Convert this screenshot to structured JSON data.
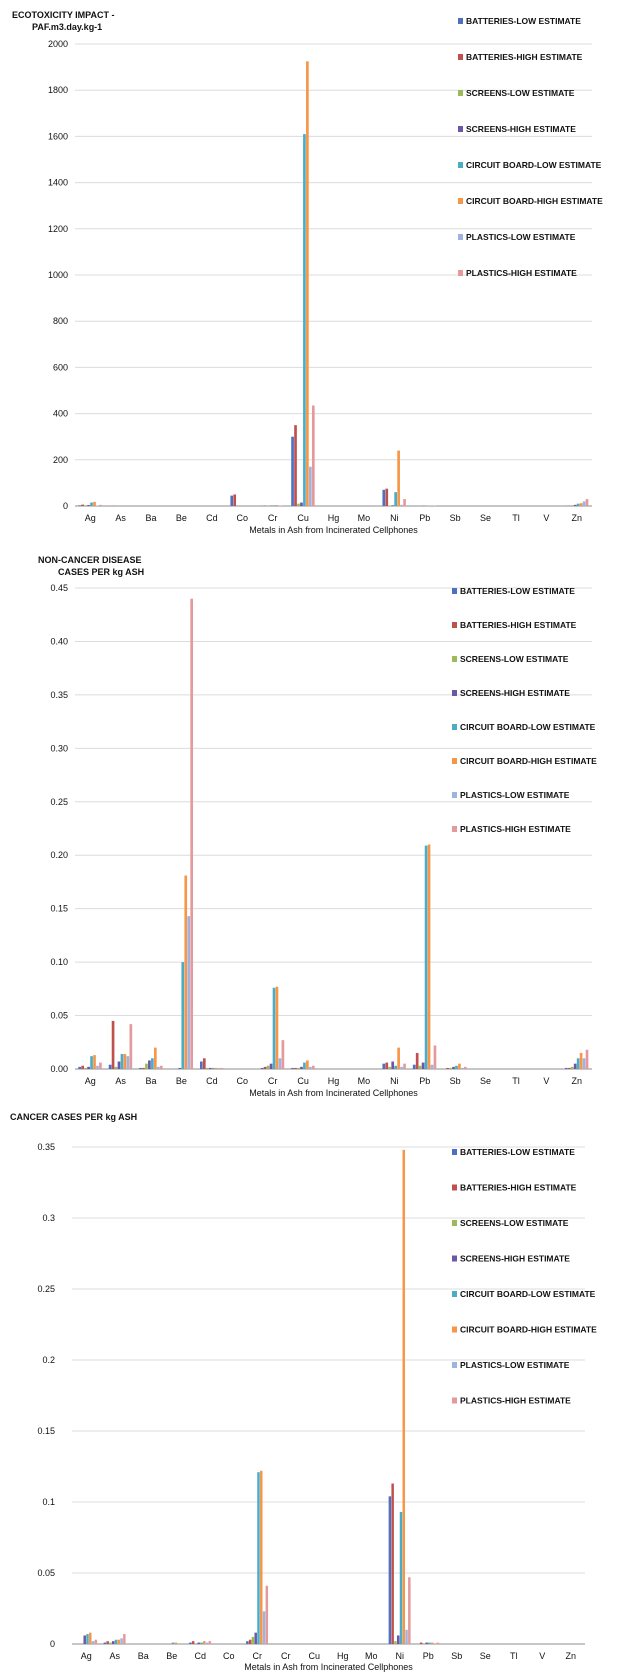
{
  "colors": [
    "#4f6fc1",
    "#c0504d",
    "#9bbb59",
    "#6b57a5",
    "#4bacc6",
    "#f79646",
    "#9fb3e0",
    "#e6999b"
  ],
  "chart_data": [
    {
      "type": "bar",
      "ylabel_lines": [
        "ECOTOXICITY IMPACT  -",
        "PAF.m3.day.kg-1"
      ],
      "xlabel": "Metals in Ash from Incinerated Cellphones",
      "ylim": [
        0,
        2000
      ],
      "ytick_labels": [
        "0",
        "200",
        "400",
        "600",
        "800",
        "1000",
        "1200",
        "1400",
        "1600",
        "1800",
        "2000"
      ],
      "grid": true,
      "legend_position": "top-right",
      "categories": [
        "Ag",
        "As",
        "Ba",
        "Be",
        "Cd",
        "Co",
        "Cr",
        "Cu",
        "Hg",
        "Mo",
        "Ni",
        "Pb",
        "Sb",
        "Se",
        "Tl",
        "V",
        "Zn"
      ],
      "series": [
        {
          "name": "BATTERIES-LOW ESTIMATE",
          "values": [
            3,
            0,
            0,
            0,
            0,
            45,
            1,
            300,
            0,
            0,
            70,
            0,
            0,
            0,
            0,
            0,
            1
          ]
        },
        {
          "name": "BATTERIES-HIGH ESTIMATE",
          "values": [
            6,
            1,
            0,
            0,
            0,
            50,
            2,
            350,
            0,
            0,
            75,
            0,
            0,
            0,
            0,
            0,
            2
          ]
        },
        {
          "name": "SCREENS-LOW ESTIMATE",
          "values": [
            3,
            0,
            0,
            0,
            0,
            0,
            1,
            10,
            0,
            0,
            2,
            1,
            0,
            0,
            0,
            0,
            3
          ]
        },
        {
          "name": "SCREENS-HIGH ESTIMATE",
          "values": [
            4,
            0,
            0,
            0,
            0,
            0,
            2,
            15,
            0,
            0,
            3,
            1,
            0,
            0,
            0,
            0,
            5
          ]
        },
        {
          "name": "CIRCUIT BOARD-LOW ESTIMATE",
          "values": [
            15,
            0,
            0,
            0,
            0,
            0,
            3,
            1610,
            0,
            0,
            60,
            1,
            0,
            0,
            0,
            0,
            10
          ]
        },
        {
          "name": "CIRCUIT BOARD-HIGH ESTIMATE",
          "values": [
            18,
            0,
            0,
            0,
            0,
            0,
            4,
            1925,
            0,
            0,
            240,
            2,
            0,
            0,
            0,
            0,
            12
          ]
        },
        {
          "name": "PLASTICS-LOW ESTIMATE",
          "values": [
            2,
            0,
            0,
            0,
            0,
            0,
            2,
            170,
            0,
            0,
            5,
            1,
            0,
            0,
            0,
            0,
            20
          ]
        },
        {
          "name": "PLASTICS-HIGH ESTIMATE",
          "values": [
            5,
            0,
            0,
            0,
            0,
            0,
            3,
            435,
            0,
            0,
            30,
            2,
            0,
            0,
            0,
            0,
            30
          ]
        }
      ]
    },
    {
      "type": "bar",
      "ylabel_lines": [
        "NON-CANCER DISEASE",
        "CASES PER kg ASH"
      ],
      "xlabel": "Metals in Ash from Incinerated Cellphones",
      "ylim": [
        0,
        0.45
      ],
      "ytick_labels": [
        "0.00",
        "0.05",
        "0.10",
        "0.15",
        "0.20",
        "0.25",
        "0.30",
        "0.35",
        "0.40",
        "0.45"
      ],
      "grid": true,
      "legend_position": "top-right",
      "categories": [
        "Ag",
        "As",
        "Ba",
        "Be",
        "Cd",
        "Co",
        "Cr",
        "Cu",
        "Hg",
        "Mo",
        "Ni",
        "Pb",
        "Sb",
        "Se",
        "Tl",
        "V",
        "Zn"
      ],
      "series": [
        {
          "name": "BATTERIES-LOW ESTIMATE",
          "values": [
            0.002,
            0.004,
            0.001,
            0,
            0.007,
            0,
            0.001,
            0.001,
            0,
            0,
            0.005,
            0.004,
            0,
            0,
            0,
            0,
            0.001
          ]
        },
        {
          "name": "BATTERIES-HIGH ESTIMATE",
          "values": [
            0.003,
            0.045,
            0.001,
            0,
            0.01,
            0,
            0.002,
            0.001,
            0,
            0,
            0.006,
            0.015,
            0.001,
            0,
            0,
            0,
            0.001
          ]
        },
        {
          "name": "SCREENS-LOW ESTIMATE",
          "values": [
            0.001,
            0.002,
            0.005,
            0,
            0.001,
            0,
            0.003,
            0.001,
            0,
            0,
            0.002,
            0.003,
            0.001,
            0,
            0,
            0,
            0.002
          ]
        },
        {
          "name": "SCREENS-HIGH ESTIMATE",
          "values": [
            0.002,
            0.007,
            0.008,
            0.001,
            0.001,
            0,
            0.005,
            0.002,
            0,
            0,
            0.007,
            0.006,
            0.002,
            0,
            0,
            0,
            0.005
          ]
        },
        {
          "name": "CIRCUIT BOARD-LOW ESTIMATE",
          "values": [
            0.012,
            0.014,
            0.01,
            0.1,
            0.001,
            0,
            0.076,
            0.006,
            0,
            0,
            0.003,
            0.209,
            0.003,
            0,
            0,
            0,
            0.01
          ]
        },
        {
          "name": "CIRCUIT BOARD-HIGH ESTIMATE",
          "values": [
            0.013,
            0.014,
            0.02,
            0.181,
            0.001,
            0,
            0.077,
            0.008,
            0,
            0,
            0.02,
            0.21,
            0.005,
            0,
            0,
            0,
            0.015
          ]
        },
        {
          "name": "PLASTICS-LOW ESTIMATE",
          "values": [
            0.003,
            0.012,
            0.002,
            0.143,
            0.001,
            0,
            0.01,
            0.002,
            0,
            0,
            0.002,
            0.004,
            0.001,
            0,
            0,
            0,
            0.01
          ]
        },
        {
          "name": "PLASTICS-HIGH ESTIMATE",
          "values": [
            0.006,
            0.042,
            0.003,
            0.44,
            0.001,
            0,
            0.027,
            0.003,
            0,
            0,
            0.005,
            0.022,
            0.002,
            0,
            0,
            0,
            0.018
          ]
        }
      ]
    },
    {
      "type": "bar",
      "ylabel_lines": [
        "CANCER CASES PER kg ASH"
      ],
      "xlabel": "Metals in Ash from Incinerated Cellphones",
      "ylim": [
        0,
        0.35
      ],
      "ytick_labels": [
        "0",
        "0.05",
        "0.1",
        "0.15",
        "0.2",
        "0.25",
        "0.3",
        "0.35"
      ],
      "grid": true,
      "legend_position": "top-right",
      "categories": [
        "Ag",
        "As",
        "Ba",
        "Be",
        "Cd",
        "Co",
        "Cr",
        "Cr",
        "Cu",
        "Hg",
        "Mo",
        "Ni",
        "Pb",
        "Sb",
        "Se",
        "Tl",
        "V",
        "Zn"
      ],
      "series": [
        {
          "name": "BATTERIES-LOW ESTIMATE",
          "values": [
            0,
            0.001,
            0,
            0,
            0.001,
            0,
            0.002,
            0,
            0,
            0,
            0,
            0.104,
            0,
            0,
            0,
            0,
            0,
            0
          ]
        },
        {
          "name": "BATTERIES-HIGH ESTIMATE",
          "values": [
            0,
            0.002,
            0,
            0,
            0.002,
            0,
            0.003,
            0,
            0,
            0,
            0,
            0.113,
            0.001,
            0,
            0,
            0,
            0,
            0
          ]
        },
        {
          "name": "SCREENS-LOW ESTIMATE",
          "values": [
            0,
            0.001,
            0,
            0,
            0,
            0,
            0.005,
            0,
            0,
            0,
            0,
            0.002,
            0,
            0,
            0,
            0,
            0,
            0
          ]
        },
        {
          "name": "SCREENS-HIGH ESTIMATE",
          "values": [
            0.006,
            0.002,
            0,
            0,
            0.001,
            0,
            0.008,
            0,
            0,
            0,
            0,
            0.006,
            0.001,
            0,
            0,
            0,
            0,
            0
          ]
        },
        {
          "name": "CIRCUIT BOARD-LOW ESTIMATE",
          "values": [
            0.007,
            0.003,
            0,
            0.001,
            0.001,
            0,
            0.121,
            0,
            0,
            0,
            0,
            0.093,
            0.001,
            0,
            0,
            0,
            0,
            0
          ]
        },
        {
          "name": "CIRCUIT BOARD-HIGH ESTIMATE",
          "values": [
            0.008,
            0.003,
            0,
            0.001,
            0.002,
            0,
            0.122,
            0,
            0,
            0,
            0,
            0.348,
            0.001,
            0,
            0,
            0,
            0,
            0
          ]
        },
        {
          "name": "PLASTICS-LOW ESTIMATE",
          "values": [
            0.002,
            0.004,
            0,
            0,
            0.001,
            0,
            0.023,
            0,
            0,
            0,
            0,
            0.01,
            0,
            0,
            0,
            0,
            0,
            0
          ]
        },
        {
          "name": "PLASTICS-HIGH ESTIMATE",
          "values": [
            0.003,
            0.007,
            0,
            0,
            0.002,
            0,
            0.041,
            0,
            0,
            0,
            0,
            0.047,
            0.001,
            0,
            0,
            0,
            0,
            0
          ]
        }
      ]
    }
  ]
}
